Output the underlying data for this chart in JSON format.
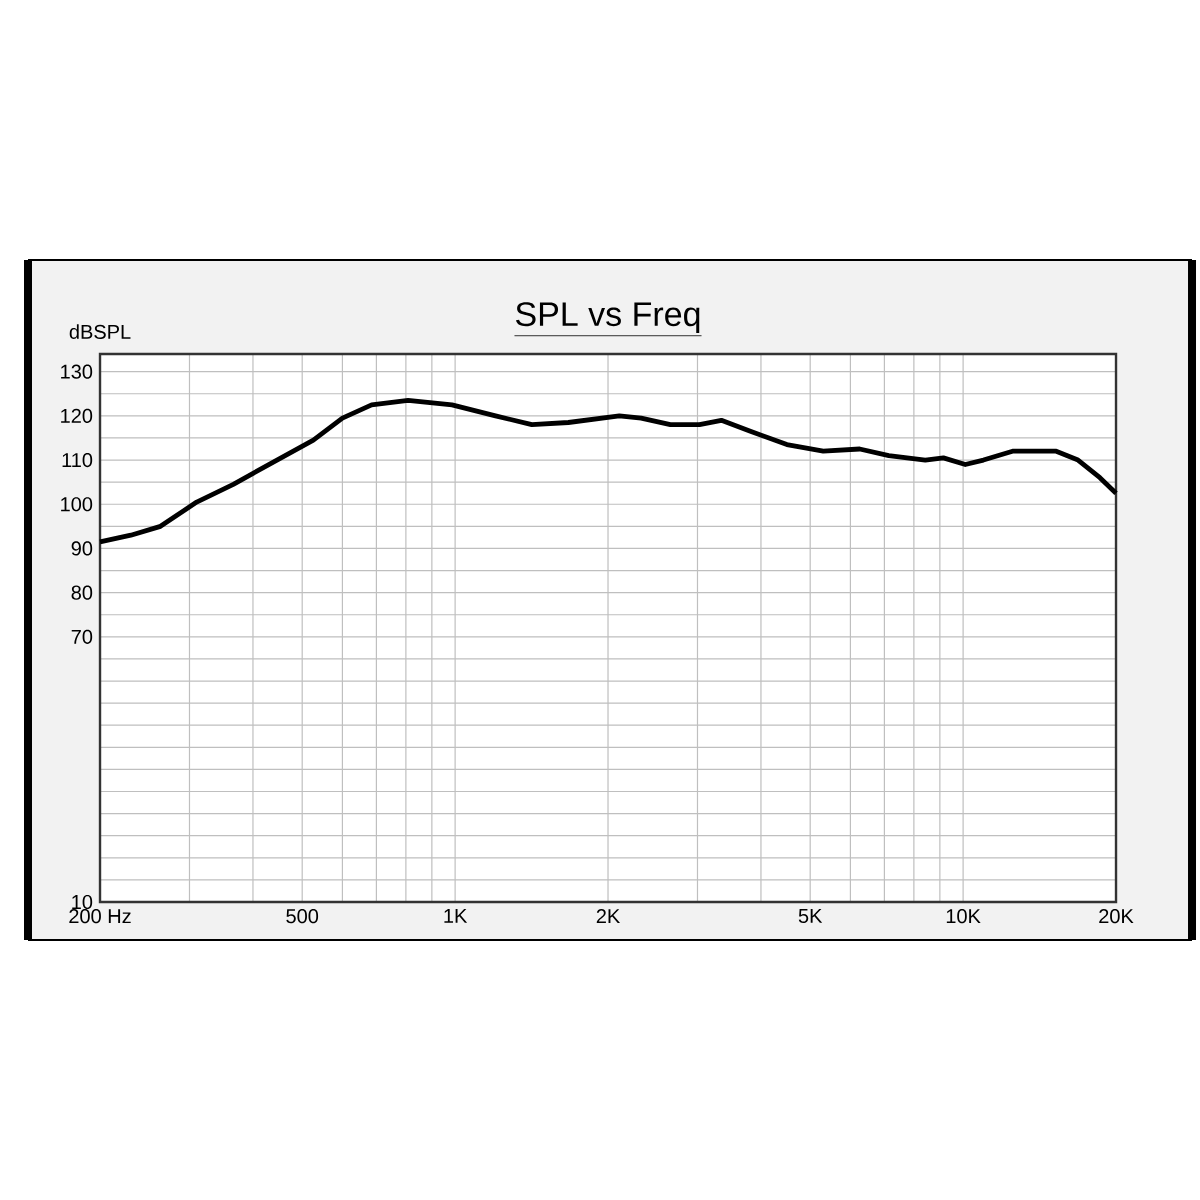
{
  "chart_data": {
    "type": "line",
    "title": "SPL vs Freq",
    "ylabel": "dBSPL",
    "log": "x",
    "grid": true,
    "line_style": "solid",
    "xlim": [
      200,
      20000
    ],
    "ylim": [
      10,
      134
    ],
    "xticks": [
      {
        "value": 200,
        "label": "200 Hz"
      },
      {
        "value": 300,
        "label": null
      },
      {
        "value": 400,
        "label": null
      },
      500,
      {
        "value": 600,
        "label": null
      },
      {
        "value": 700,
        "label": null
      },
      {
        "value": 800,
        "label": null
      },
      {
        "value": 900,
        "label": null
      },
      {
        "value": 1000,
        "label": "1K"
      },
      {
        "value": 2000,
        "label": "2K"
      },
      {
        "value": 3000,
        "label": null
      },
      {
        "value": 4000,
        "label": null
      },
      {
        "value": 5000,
        "label": "5K"
      },
      {
        "value": 6000,
        "label": null
      },
      {
        "value": 7000,
        "label": null
      },
      {
        "value": 8000,
        "label": null
      },
      {
        "value": 9000,
        "label": null
      },
      {
        "value": 10000,
        "label": "10K"
      },
      {
        "value": 20000,
        "label": "20K"
      }
    ],
    "yticks": [
      10,
      {
        "value": 15,
        "label": null
      },
      {
        "value": 20,
        "label": null
      },
      {
        "value": 25,
        "label": null
      },
      {
        "value": 30,
        "label": null
      },
      {
        "value": 35,
        "label": null
      },
      {
        "value": 40,
        "label": null
      },
      {
        "value": 45,
        "label": null
      },
      {
        "value": 50,
        "label": null
      },
      {
        "value": 55,
        "label": null
      },
      {
        "value": 60,
        "label": null
      },
      {
        "value": 65,
        "label": null
      },
      70,
      {
        "value": 75,
        "label": null
      },
      80,
      {
        "value": 85,
        "label": null
      },
      90,
      {
        "value": 95,
        "label": null
      },
      100,
      {
        "value": 105,
        "label": null
      },
      110,
      {
        "value": 115,
        "label": null
      },
      120,
      {
        "value": 125,
        "label": null
      },
      130
    ],
    "series": [
      {
        "color": "#000000",
        "x": [
          200,
          230,
          263,
          310,
          366,
          446,
          526,
          600,
          685,
          808,
          986,
          1201,
          1416,
          1671,
          2105,
          2324,
          2653,
          3027,
          3343,
          3813,
          4499,
          5305,
          6257,
          7140,
          8425,
          9146,
          10100,
          10965,
          12511,
          15249,
          16836,
          18593,
          20000
        ],
        "values": [
          91.5,
          93,
          95,
          100.5,
          104.5,
          110,
          114.5,
          119.5,
          122.5,
          123.5,
          122.5,
          120,
          118,
          118.5,
          120,
          119.5,
          118,
          118,
          119,
          116.5,
          113.5,
          112,
          112.5,
          111,
          110,
          110.5,
          109,
          110,
          112,
          112,
          110,
          106,
          102.5
        ]
      }
    ]
  }
}
